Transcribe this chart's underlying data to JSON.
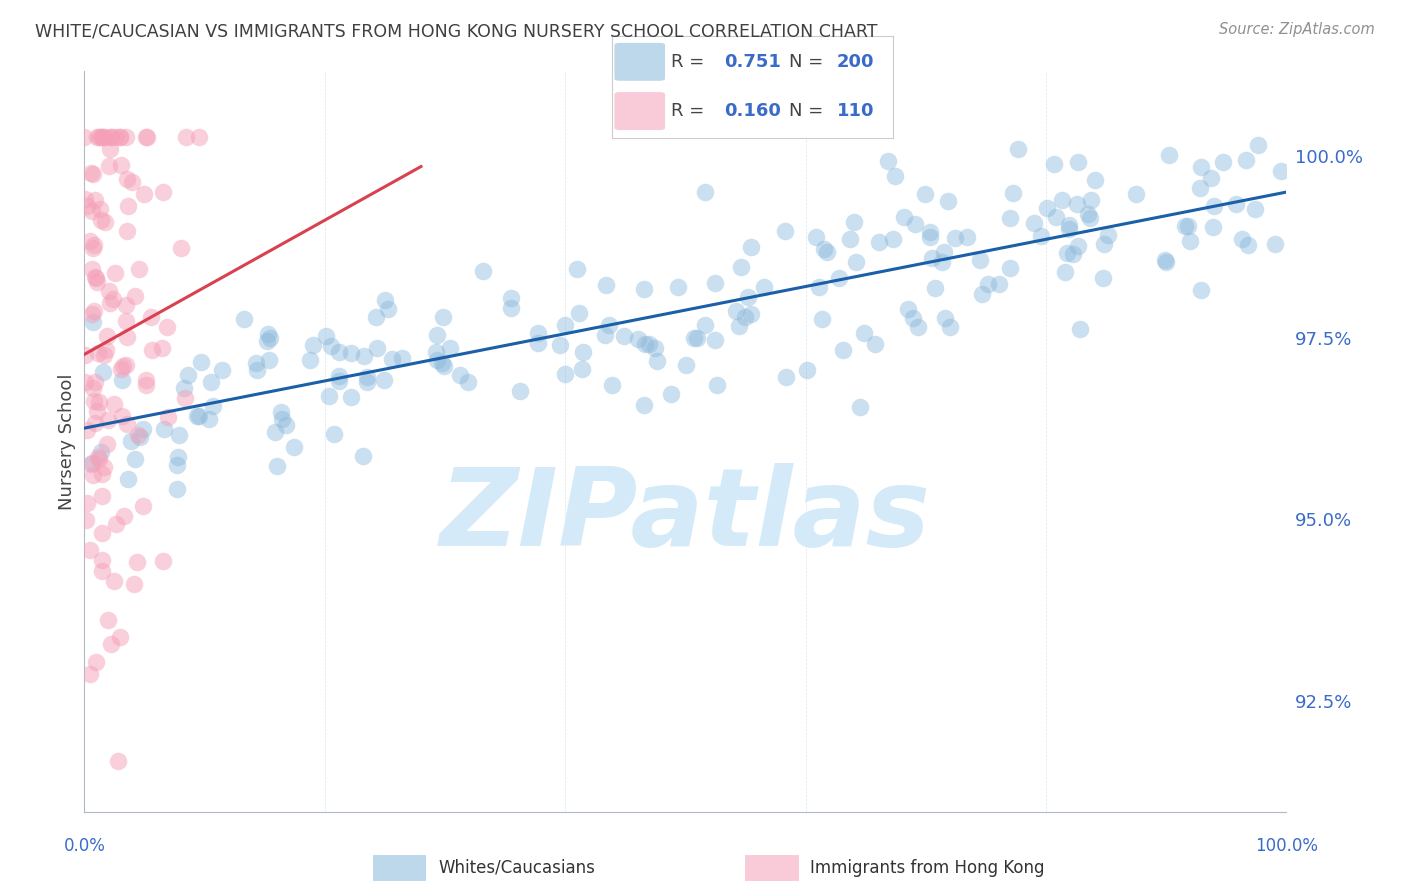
{
  "title": "WHITE/CAUCASIAN VS IMMIGRANTS FROM HONG KONG NURSERY SCHOOL CORRELATION CHART",
  "source": "Source: ZipAtlas.com",
  "ylabel": "Nursery School",
  "yticks": [
    92.5,
    95.0,
    97.5,
    100.0
  ],
  "ytick_labels": [
    "92.5%",
    "95.0%",
    "97.5%",
    "100.0%"
  ],
  "xrange": [
    0,
    100
  ],
  "yrange": [
    91.0,
    101.2
  ],
  "blue_R": "0.751",
  "blue_N": 200,
  "pink_R": "0.160",
  "pink_N": 110,
  "legend_label_blue": "Whites/Caucasians",
  "legend_label_pink": "Immigrants from Hong Kong",
  "blue_color": "#8ab8dc",
  "pink_color": "#f5a0b8",
  "blue_line_color": "#1a5fa8",
  "pink_line_color": "#d94050",
  "watermark_text": "ZIPatlas",
  "watermark_color": "#d5eaf8",
  "axis_color": "#3a6bc8",
  "grid_color": "#dce4f0",
  "title_color": "#404040",
  "source_color": "#909090",
  "blue_trend_x0": 0,
  "blue_trend_y0": 96.3,
  "blue_trend_x1": 100,
  "blue_trend_y1": 99.5,
  "pink_trend_x0": 0,
  "pink_trend_y0": 97.2,
  "pink_trend_x1": 30,
  "pink_trend_y1": 99.8
}
